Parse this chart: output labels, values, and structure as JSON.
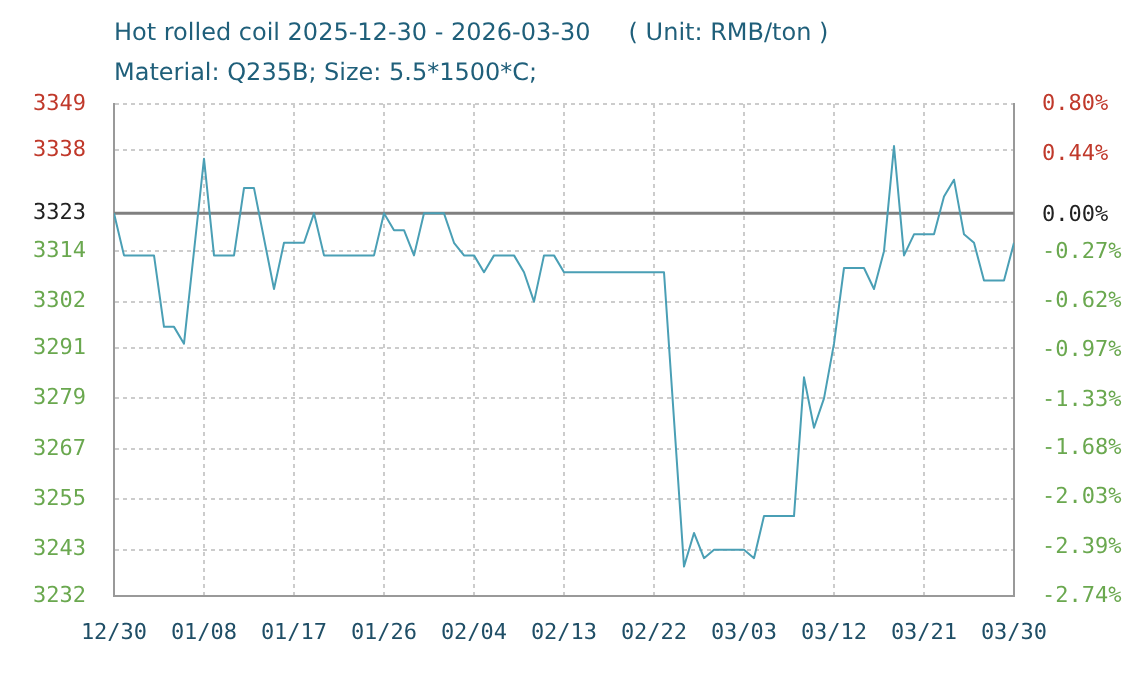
{
  "chart_data": {
    "type": "line",
    "title": "Hot rolled coil 2025-12-30 - 2026-03-30     ( Unit: RMB/ton )",
    "subtitle": "Material: Q235B; Size: 5.5*1500*C;",
    "x": [
      "2025-12-30",
      "2025-12-31",
      "2026-01-03",
      "2026-01-04",
      "2026-01-05",
      "2026-01-06",
      "2026-01-08",
      "2026-01-09",
      "2026-01-11",
      "2026-01-12",
      "2026-01-13",
      "2026-01-15",
      "2026-01-16",
      "2026-01-18",
      "2026-01-19",
      "2026-01-20",
      "2026-01-25",
      "2026-01-26",
      "2026-01-27",
      "2026-01-28",
      "2026-01-29",
      "2026-01-30",
      "2026-02-01",
      "2026-02-02",
      "2026-02-03",
      "2026-02-04",
      "2026-02-05",
      "2026-02-06",
      "2026-02-08",
      "2026-02-09",
      "2026-02-10",
      "2026-02-11",
      "2026-02-12",
      "2026-02-13",
      "2026-02-23",
      "2026-02-25",
      "2026-02-26",
      "2026-02-27",
      "2026-02-28",
      "2026-03-03",
      "2026-03-04",
      "2026-03-05",
      "2026-03-08",
      "2026-03-09",
      "2026-03-10",
      "2026-03-11",
      "2026-03-12",
      "2026-03-13",
      "2026-03-15",
      "2026-03-16",
      "2026-03-17",
      "2026-03-18",
      "2026-03-19",
      "2026-03-20",
      "2026-03-22",
      "2026-03-23",
      "2026-03-24",
      "2026-03-25",
      "2026-03-26",
      "2026-03-27",
      "2026-03-29",
      "2026-03-30"
    ],
    "series": [
      {
        "color": "#4a9fb5",
        "values": [
          3323,
          3313,
          3313,
          3296,
          3296,
          3292,
          3336,
          3313,
          3313,
          3329,
          3329,
          3305,
          3316,
          3316,
          3323,
          3313,
          3313,
          3323,
          3319,
          3319,
          3313,
          3323,
          3323,
          3316,
          3313,
          3313,
          3309,
          3313,
          3313,
          3309,
          3302,
          3313,
          3313,
          3309,
          3309,
          3239,
          3247,
          3241,
          3243,
          3243,
          3241,
          3251,
          3251,
          3284,
          3272,
          3279,
          3292,
          3310,
          3310,
          3305,
          3314,
          3339,
          3313,
          3318,
          3318,
          3327,
          3331,
          3318,
          3316,
          3307,
          3307,
          3316
        ]
      }
    ],
    "xlim": [
      "2025-12-30",
      "2026-03-30"
    ],
    "xticks": [
      {
        "value": "2025-12-30",
        "label": "12/30"
      },
      {
        "value": "2026-01-08",
        "label": "01/08"
      },
      {
        "value": "2026-01-17",
        "label": "01/17"
      },
      {
        "value": "2026-01-26",
        "label": "01/26"
      },
      {
        "value": "2026-02-04",
        "label": "02/04"
      },
      {
        "value": "2026-02-13",
        "label": "02/13"
      },
      {
        "value": "2026-02-22",
        "label": "02/22"
      },
      {
        "value": "2026-03-03",
        "label": "03/03"
      },
      {
        "value": "2026-03-12",
        "label": "03/12"
      },
      {
        "value": "2026-03-21",
        "label": "03/21"
      },
      {
        "value": "2026-03-30",
        "label": "03/30"
      }
    ],
    "ylim": [
      3232,
      3349
    ],
    "yticks": [
      3232,
      3243,
      3255,
      3267,
      3279,
      3291,
      3302,
      3314,
      3323,
      3338,
      3349
    ],
    "y2lim": [
      -2.74,
      0.8
    ],
    "y2ticks": [
      {
        "value": -2.74,
        "label": "-2.74%"
      },
      {
        "value": -2.39,
        "label": "-2.39%"
      },
      {
        "value": -2.03,
        "label": "-2.03%"
      },
      {
        "value": -1.68,
        "label": "-1.68%"
      },
      {
        "value": -1.33,
        "label": "-1.33%"
      },
      {
        "value": -0.97,
        "label": "-0.97%"
      },
      {
        "value": -0.62,
        "label": "-0.62%"
      },
      {
        "value": -0.27,
        "label": "-0.27%"
      },
      {
        "value": 0,
        "label": "0.00%"
      },
      {
        "value": 0.44,
        "label": "0.44%"
      },
      {
        "value": 0.8,
        "label": "0.80%"
      }
    ],
    "ref_lines": [
      {
        "axis": "y",
        "value": 3323,
        "color": "#808080"
      }
    ],
    "grid": true,
    "legend": false,
    "marker": "none",
    "line_style": "solid"
  }
}
